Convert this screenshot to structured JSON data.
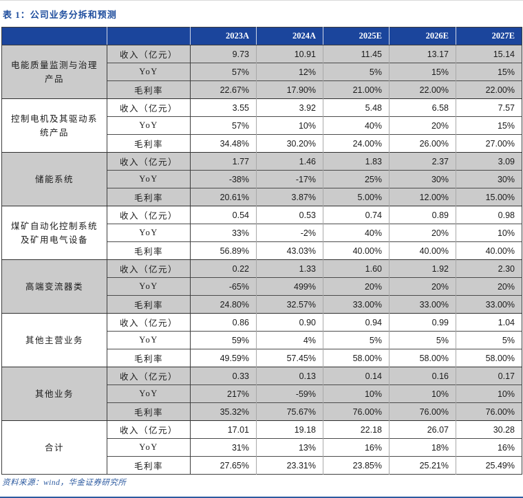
{
  "page": {
    "title_label": "表 1：",
    "title_text": "公司业务分拆和预测",
    "source_text": "资料来源：wind，华金证券研究所"
  },
  "colors": {
    "header_bg": "#1B459C",
    "shaded_row": "#CBCBCB",
    "title_blue": "#1F4E9E",
    "source_blue": "#2C5AA0",
    "bottom_rule_blue": "#2C5AA0",
    "border_dark": "#3c3c3c"
  },
  "table": {
    "year_columns": [
      "2023A",
      "2024A",
      "2025E",
      "2026E",
      "2027E"
    ],
    "metric_labels": [
      "收入（亿元）",
      "YoY",
      "毛利率"
    ],
    "groups": [
      {
        "name": "电能质量监测与治理产品",
        "shaded": true,
        "rows": [
          [
            "9.73",
            "10.91",
            "11.45",
            "13.17",
            "15.14"
          ],
          [
            "57%",
            "12%",
            "5%",
            "15%",
            "15%"
          ],
          [
            "22.67%",
            "17.90%",
            "21.00%",
            "22.00%",
            "22.00%"
          ]
        ]
      },
      {
        "name": "控制电机及其驱动系统产品",
        "shaded": false,
        "rows": [
          [
            "3.55",
            "3.92",
            "5.48",
            "6.58",
            "7.57"
          ],
          [
            "57%",
            "10%",
            "40%",
            "20%",
            "15%"
          ],
          [
            "34.48%",
            "30.20%",
            "24.00%",
            "26.00%",
            "27.00%"
          ]
        ]
      },
      {
        "name": "储能系统",
        "shaded": true,
        "rows": [
          [
            "1.77",
            "1.46",
            "1.83",
            "2.37",
            "3.09"
          ],
          [
            "-38%",
            "-17%",
            "25%",
            "30%",
            "30%"
          ],
          [
            "20.61%",
            "3.87%",
            "5.00%",
            "12.00%",
            "15.00%"
          ]
        ]
      },
      {
        "name": "煤矿自动化控制系统及矿用电气设备",
        "shaded": false,
        "rows": [
          [
            "0.54",
            "0.53",
            "0.74",
            "0.89",
            "0.98"
          ],
          [
            "33%",
            "-2%",
            "40%",
            "20%",
            "10%"
          ],
          [
            "56.89%",
            "43.03%",
            "40.00%",
            "40.00%",
            "40.00%"
          ]
        ]
      },
      {
        "name": "高端变流器类",
        "shaded": true,
        "rows": [
          [
            "0.22",
            "1.33",
            "1.60",
            "1.92",
            "2.30"
          ],
          [
            "-65%",
            "499%",
            "20%",
            "20%",
            "20%"
          ],
          [
            "24.80%",
            "32.57%",
            "33.00%",
            "33.00%",
            "33.00%"
          ]
        ]
      },
      {
        "name": "其他主营业务",
        "shaded": false,
        "rows": [
          [
            "0.86",
            "0.90",
            "0.94",
            "0.99",
            "1.04"
          ],
          [
            "59%",
            "4%",
            "5%",
            "5%",
            "5%"
          ],
          [
            "49.59%",
            "57.45%",
            "58.00%",
            "58.00%",
            "58.00%"
          ]
        ]
      },
      {
        "name": "其他业务",
        "shaded": true,
        "rows": [
          [
            "0.33",
            "0.13",
            "0.14",
            "0.16",
            "0.17"
          ],
          [
            "217%",
            "-59%",
            "10%",
            "10%",
            "10%"
          ],
          [
            "35.32%",
            "75.67%",
            "76.00%",
            "76.00%",
            "76.00%"
          ]
        ]
      },
      {
        "name": "合计",
        "shaded": false,
        "rows": [
          [
            "17.01",
            "19.18",
            "22.18",
            "26.07",
            "30.28"
          ],
          [
            "31%",
            "13%",
            "16%",
            "18%",
            "16%"
          ],
          [
            "27.65%",
            "23.31%",
            "23.85%",
            "25.21%",
            "25.49%"
          ]
        ]
      }
    ]
  }
}
